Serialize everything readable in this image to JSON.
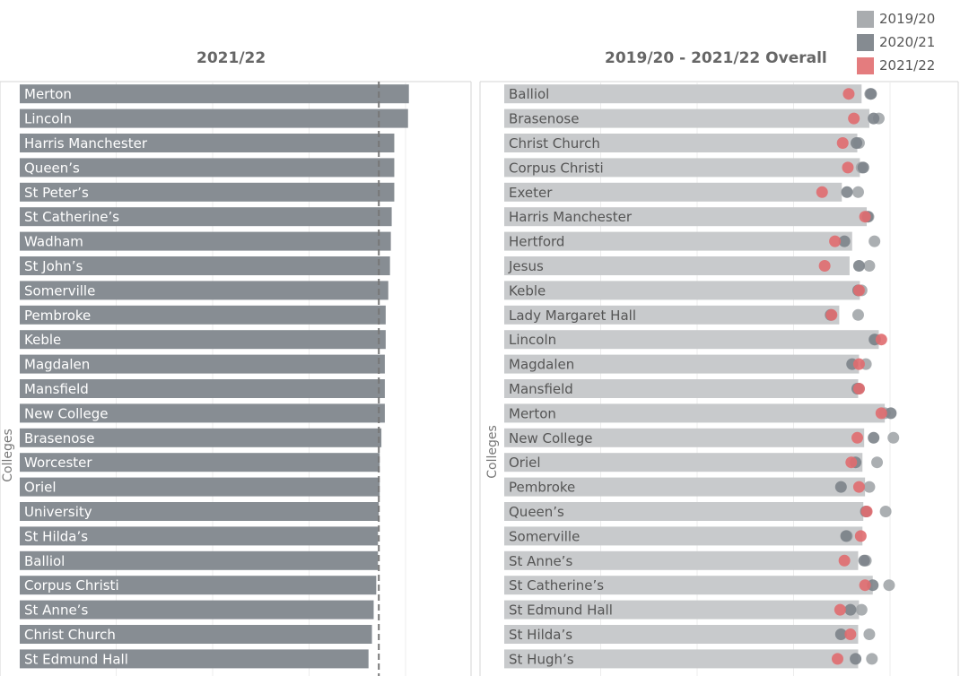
{
  "legend": {
    "items": [
      {
        "label": "2019/20",
        "color": "#a9acaf"
      },
      {
        "label": "2020/21",
        "color": "#858b91"
      },
      {
        "label": "2021/22",
        "color": "#e47c7e"
      }
    ]
  },
  "left_panel": {
    "title": "2021/22",
    "ylabel": "Colleges"
  },
  "right_panel": {
    "title": "2019/20 - 2021/22 Overall",
    "ylabel": "Colleges"
  },
  "chart_data": [
    {
      "type": "bar",
      "title": "2021/22",
      "ylabel": "Colleges",
      "xlim": [
        0,
        470
      ],
      "reference_line": 418,
      "categories": [
        "Merton",
        "Lincoln",
        "Harris Manchester",
        "Queen’s",
        "St Peter’s",
        "St Catherine’s",
        "Wadham",
        "St John’s",
        "Somerville",
        "Pembroke",
        "Keble",
        "Magdalen",
        "Mansfield",
        "New College",
        "Brasenose",
        "Worcester",
        "Oriel",
        "University",
        "St Hilda’s",
        "Balliol",
        "Corpus Christi",
        "St Anne’s",
        "Christ Church",
        "St Edmund Hall"
      ],
      "values": [
        453,
        452,
        436,
        436,
        436,
        433,
        432,
        431,
        429,
        426,
        426,
        425,
        425,
        425,
        421,
        419,
        419,
        418,
        417,
        417,
        415,
        412,
        410,
        406
      ]
    },
    {
      "type": "scatter",
      "title": "2019/20 - 2021/22 Overall",
      "ylabel": "Colleges",
      "xlim": [
        0,
        470
      ],
      "categories": [
        "Balliol",
        "Brasenose",
        "Christ Church",
        "Corpus Christi",
        "Exeter",
        "Harris Manchester",
        "Hertford",
        "Jesus",
        "Keble",
        "Lady Margaret Hall",
        "Lincoln",
        "Magdalen",
        "Mansfield",
        "Merton",
        "New College",
        "Oriel",
        "Pembroke",
        "Queen’s",
        "Somerville",
        "St Anne’s",
        "St Catherine’s",
        "St Edmund Hall",
        "St Hilda’s",
        "St Hugh’s"
      ],
      "bars": [
        416,
        425,
        411,
        414,
        393,
        422,
        405,
        402,
        414,
        390,
        436,
        413,
        412,
        443,
        419,
        417,
        420,
        418,
        417,
        412,
        429,
        413,
        412,
        412
      ],
      "series": [
        {
          "name": "2019/20",
          "values": [
            426,
            436,
            413,
            416,
            412,
            424,
            431,
            425,
            416,
            412,
            432,
            421,
            413,
            443,
            453,
            434,
            425,
            444,
            399,
            421,
            448,
            416,
            425,
            428
          ]
        },
        {
          "name": "2020/21",
          "values": [
            427,
            430,
            410,
            418,
            399,
            423,
            396,
            413,
            412,
            380,
            431,
            405,
            411,
            450,
            430,
            409,
            392,
            421,
            398,
            419,
            429,
            403,
            392,
            409
          ]
        },
        {
          "name": "2021/22",
          "values": [
            401,
            407,
            394,
            400,
            370,
            420,
            385,
            373,
            413,
            381,
            439,
            413,
            413,
            439,
            411,
            404,
            413,
            422,
            415,
            396,
            420,
            391,
            403,
            388
          ]
        }
      ]
    }
  ]
}
